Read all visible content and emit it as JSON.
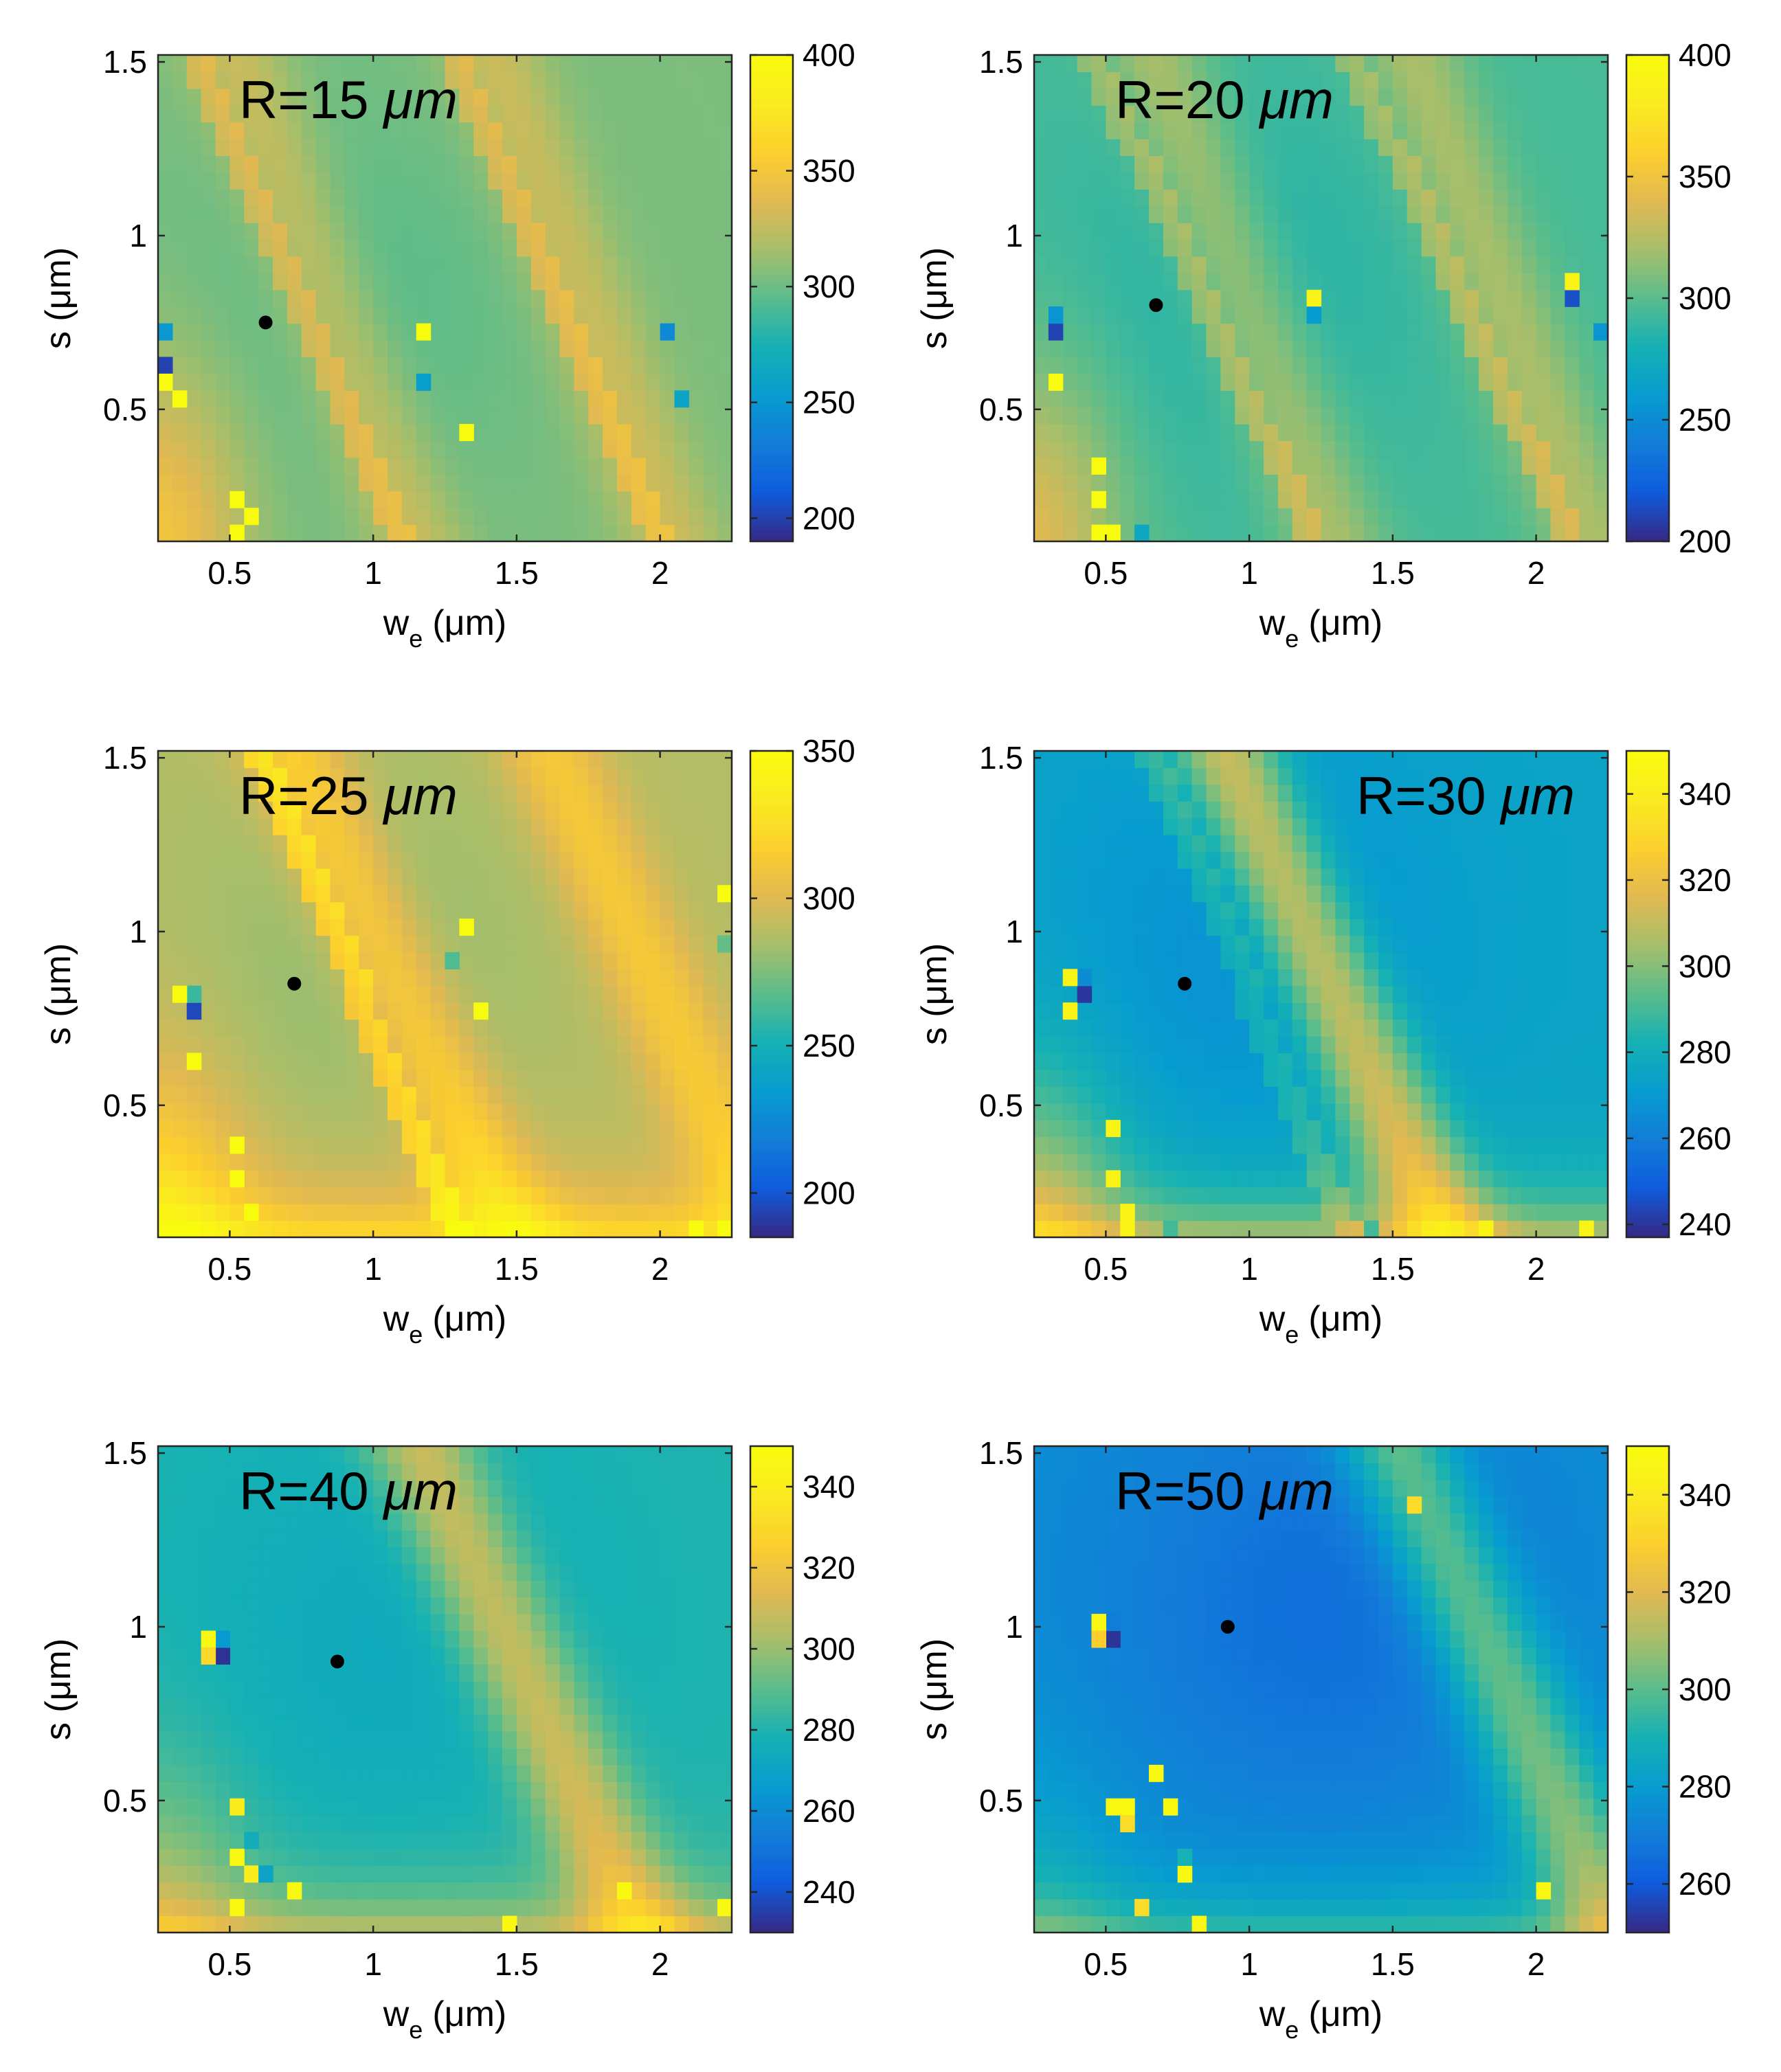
{
  "figure": {
    "description_note": "2x3 grid of heatmaps, values vs electrode width and gap"
  },
  "chart_data": [
    {
      "type": "heatmap",
      "title": "R=15 μm",
      "title_prefix": "R=15",
      "title_unit": "μm",
      "title_position": "top-left",
      "xlabel": "w",
      "xlabel_sub": "e",
      "xlabel_unit": "(μm)",
      "ylabel": "s (μm)",
      "xlim": [
        0.25,
        2.25
      ],
      "ylim": [
        0.12,
        1.52
      ],
      "xticks": [
        0.5,
        1,
        1.5,
        2
      ],
      "xtick_labels": [
        "0.5",
        "1",
        "1.5",
        "2"
      ],
      "yticks": [
        0.5,
        1,
        1.5
      ],
      "ytick_labels": [
        "0.5",
        "1",
        "1.5"
      ],
      "clim": [
        190,
        400
      ],
      "cticks": [
        200,
        250,
        300,
        350,
        400
      ],
      "ctick_labels": [
        "200",
        "250",
        "300",
        "350",
        "400"
      ],
      "marker": {
        "x": 0.625,
        "y": 0.75
      },
      "grid_cells": {
        "nx": 40,
        "ny": 29
      },
      "base_value": 305,
      "bands": [
        {
          "a": 1.2,
          "b": 0.45,
          "c": 1.85,
          "height": 25
        },
        {
          "a": 2.1,
          "b": 0.45,
          "c": 1.85,
          "height": 25
        }
      ],
      "ridges": [
        {
          "a": 1.15,
          "b": 0.52,
          "height": 35
        },
        {
          "a": 2.05,
          "b": 0.52,
          "height": 35
        }
      ],
      "bowl": {
        "x": 0.9,
        "y": 0.8,
        "rx": 0.7,
        "ry": 0.6,
        "depth": 10
      },
      "corner_boost": 45,
      "spots": [
        {
          "x": 0.28,
          "y": 0.65,
          "v": 200
        },
        {
          "x": 0.28,
          "y": 0.7,
          "v": 250
        },
        {
          "x": 0.28,
          "y": 0.6,
          "v": 400
        },
        {
          "x": 0.33,
          "y": 0.55,
          "v": 400
        },
        {
          "x": 0.53,
          "y": 0.25,
          "v": 400
        },
        {
          "x": 0.53,
          "y": 0.15,
          "v": 400
        },
        {
          "x": 0.58,
          "y": 0.2,
          "v": 400
        },
        {
          "x": 1.18,
          "y": 0.7,
          "v": 400
        },
        {
          "x": 1.33,
          "y": 0.45,
          "v": 400
        },
        {
          "x": 1.18,
          "y": 0.6,
          "v": 255
        },
        {
          "x": 2.0,
          "y": 0.7,
          "v": 240
        },
        {
          "x": 2.08,
          "y": 0.55,
          "v": 260
        }
      ]
    },
    {
      "type": "heatmap",
      "title": "R=20 μm",
      "title_prefix": "R=20",
      "title_unit": "μm",
      "title_position": "top-left",
      "xlabel": "w",
      "xlabel_sub": "e",
      "xlabel_unit": "(μm)",
      "ylabel": "s (μm)",
      "xlim": [
        0.25,
        2.25
      ],
      "ylim": [
        0.12,
        1.52
      ],
      "xticks": [
        0.5,
        1,
        1.5,
        2
      ],
      "xtick_labels": [
        "0.5",
        "1",
        "1.5",
        "2"
      ],
      "yticks": [
        0.5,
        1,
        1.5
      ],
      "ytick_labels": [
        "0.5",
        "1",
        "1.5"
      ],
      "clim": [
        200,
        400
      ],
      "cticks": [
        200,
        250,
        300,
        350,
        400
      ],
      "ctick_labels": [
        "200",
        "250",
        "300",
        "350",
        "400"
      ],
      "marker": {
        "x": 0.675,
        "y": 0.8
      },
      "grid_cells": {
        "nx": 40,
        "ny": 29
      },
      "base_value": 295,
      "bands": [
        {
          "a": 1.35,
          "b": 0.45,
          "c": 1.95,
          "height": 28
        },
        {
          "a": 2.25,
          "b": 0.45,
          "c": 1.95,
          "height": 28
        }
      ],
      "ridges": [
        {
          "a": 1.28,
          "b": 0.55,
          "height": 35
        },
        {
          "a": 2.18,
          "b": 0.55,
          "height": 35
        }
      ],
      "bowl": {
        "x": 0.95,
        "y": 0.85,
        "rx": 0.7,
        "ry": 0.6,
        "depth": 10
      },
      "corner_boost": 45,
      "spots": [
        {
          "x": 0.33,
          "y": 0.7,
          "v": 210
        },
        {
          "x": 0.33,
          "y": 0.75,
          "v": 255
        },
        {
          "x": 0.33,
          "y": 0.6,
          "v": 400
        },
        {
          "x": 0.48,
          "y": 0.35,
          "v": 400
        },
        {
          "x": 0.48,
          "y": 0.25,
          "v": 400
        },
        {
          "x": 0.53,
          "y": 0.15,
          "v": 400
        },
        {
          "x": 0.48,
          "y": 0.15,
          "v": 400
        },
        {
          "x": 1.23,
          "y": 0.8,
          "v": 390
        },
        {
          "x": 1.23,
          "y": 0.75,
          "v": 260
        },
        {
          "x": 2.13,
          "y": 0.8,
          "v": 215
        },
        {
          "x": 2.13,
          "y": 0.85,
          "v": 390
        },
        {
          "x": 2.23,
          "y": 0.7,
          "v": 255
        },
        {
          "x": 0.63,
          "y": 0.15,
          "v": 270
        }
      ]
    },
    {
      "type": "heatmap",
      "title": "R=25 μm",
      "title_prefix": "R=25",
      "title_unit": "μm",
      "title_position": "top-left",
      "xlabel": "w",
      "xlabel_sub": "e",
      "xlabel_unit": "(μm)",
      "ylabel": "s (μm)",
      "xlim": [
        0.25,
        2.25
      ],
      "ylim": [
        0.12,
        1.52
      ],
      "xticks": [
        0.5,
        1,
        1.5,
        2
      ],
      "xtick_labels": [
        "0.5",
        "1",
        "1.5",
        "2"
      ],
      "yticks": [
        0.5,
        1,
        1.5
      ],
      "ytick_labels": [
        "0.5",
        "1",
        "1.5"
      ],
      "clim": [
        185,
        350
      ],
      "cticks": [
        200,
        250,
        300,
        350
      ],
      "ctick_labels": [
        "200",
        "250",
        "300",
        "350"
      ],
      "marker": {
        "x": 0.725,
        "y": 0.85
      },
      "grid_cells": {
        "nx": 40,
        "ny": 29
      },
      "base_value": 288,
      "bands": [
        {
          "a": 1.55,
          "b": 0.55,
          "c": 2.0,
          "height": 30
        },
        {
          "a": 2.45,
          "b": 0.55,
          "c": 2.0,
          "height": 25
        }
      ],
      "ridges": [
        {
          "a": 1.35,
          "b": 0.5,
          "height": 45
        }
      ],
      "bowl": {
        "x": 0.95,
        "y": 0.9,
        "rx": 0.6,
        "ry": 0.55,
        "depth": 8
      },
      "bottom_boost": 40,
      "corner_boost": 35,
      "spots": [
        {
          "x": 0.38,
          "y": 0.75,
          "v": 195
        },
        {
          "x": 0.38,
          "y": 0.8,
          "v": 260
        },
        {
          "x": 0.33,
          "y": 0.8,
          "v": 350
        },
        {
          "x": 0.38,
          "y": 0.65,
          "v": 350
        },
        {
          "x": 0.53,
          "y": 0.4,
          "v": 350
        },
        {
          "x": 0.53,
          "y": 0.3,
          "v": 350
        },
        {
          "x": 0.58,
          "y": 0.2,
          "v": 350
        },
        {
          "x": 1.33,
          "y": 1.0,
          "v": 350
        },
        {
          "x": 1.38,
          "y": 0.75,
          "v": 350
        },
        {
          "x": 2.23,
          "y": 1.1,
          "v": 350
        },
        {
          "x": 1.28,
          "y": 0.9,
          "v": 265
        },
        {
          "x": 2.23,
          "y": 0.95,
          "v": 270
        },
        {
          "x": 2.13,
          "y": 0.15,
          "v": 350
        },
        {
          "x": 2.23,
          "y": 0.15,
          "v": 350
        }
      ]
    },
    {
      "type": "heatmap",
      "title": "R=30 μm",
      "title_prefix": "R=30",
      "title_unit": "μm",
      "title_position": "top-right",
      "xlabel": "w",
      "xlabel_sub": "e",
      "xlabel_unit": "(μm)",
      "ylabel": "s (μm)",
      "xlim": [
        0.25,
        2.25
      ],
      "ylim": [
        0.12,
        1.52
      ],
      "xticks": [
        0.5,
        1,
        1.5,
        2
      ],
      "xtick_labels": [
        "0.5",
        "1",
        "1.5",
        "2"
      ],
      "yticks": [
        0.5,
        1,
        1.5
      ],
      "ytick_labels": [
        "0.5",
        "1",
        "1.5"
      ],
      "clim": [
        237,
        350
      ],
      "cticks": [
        240,
        260,
        280,
        300,
        320,
        340
      ],
      "ctick_labels": [
        "240",
        "260",
        "280",
        "300",
        "320",
        "340"
      ],
      "marker": {
        "x": 0.775,
        "y": 0.85
      },
      "grid_cells": {
        "nx": 40,
        "ny": 29
      },
      "base_value": 275,
      "bands": [
        {
          "a": 1.75,
          "b": 0.55,
          "c": 2.1,
          "height": 40
        }
      ],
      "ridges": [
        {
          "a": 1.4,
          "b": 0.5,
          "height": 20
        }
      ],
      "bowl": {
        "x": 1.0,
        "y": 0.95,
        "rx": 0.7,
        "ry": 0.65,
        "depth": 8
      },
      "bottom_boost": 35,
      "corner_boost": 30,
      "spots": [
        {
          "x": 0.43,
          "y": 0.8,
          "v": 240
        },
        {
          "x": 0.43,
          "y": 0.85,
          "v": 265
        },
        {
          "x": 0.38,
          "y": 0.85,
          "v": 345
        },
        {
          "x": 0.38,
          "y": 0.75,
          "v": 345
        },
        {
          "x": 0.53,
          "y": 0.45,
          "v": 345
        },
        {
          "x": 0.53,
          "y": 0.3,
          "v": 345
        },
        {
          "x": 0.58,
          "y": 0.2,
          "v": 345
        },
        {
          "x": 0.58,
          "y": 0.15,
          "v": 345
        },
        {
          "x": 1.83,
          "y": 0.15,
          "v": 345
        },
        {
          "x": 2.18,
          "y": 0.15,
          "v": 345
        },
        {
          "x": 0.73,
          "y": 0.15,
          "v": 290
        },
        {
          "x": 1.43,
          "y": 0.15,
          "v": 290
        }
      ]
    },
    {
      "type": "heatmap",
      "title": "R=40 μm",
      "title_prefix": "R=40",
      "title_unit": "μm",
      "title_position": "top-left",
      "xlabel": "w",
      "xlabel_sub": "e",
      "xlabel_unit": "(μm)",
      "ylabel": "s (μm)",
      "xlim": [
        0.25,
        2.25
      ],
      "ylim": [
        0.12,
        1.52
      ],
      "xticks": [
        0.5,
        1,
        1.5,
        2
      ],
      "xtick_labels": [
        "0.5",
        "1",
        "1.5",
        "2"
      ],
      "yticks": [
        0.5,
        1,
        1.5
      ],
      "ytick_labels": [
        "0.5",
        "1",
        "1.5"
      ],
      "clim": [
        230,
        350
      ],
      "cticks": [
        240,
        260,
        280,
        300,
        320,
        340
      ],
      "ctick_labels": [
        "240",
        "260",
        "280",
        "300",
        "320",
        "340"
      ],
      "marker": {
        "x": 0.875,
        "y": 0.9
      },
      "grid_cells": {
        "nx": 40,
        "ny": 29
      },
      "base_value": 280,
      "bands": [
        {
          "a": 2.0,
          "b": 0.55,
          "c": 2.2,
          "height": 32
        }
      ],
      "ridges": [],
      "bowl": {
        "x": 1.05,
        "y": 0.95,
        "rx": 0.75,
        "ry": 0.7,
        "depth": 6
      },
      "bottom_boost": 30,
      "corner_boost": 20,
      "spots": [
        {
          "x": 0.48,
          "y": 0.9,
          "v": 232
        },
        {
          "x": 0.48,
          "y": 0.95,
          "v": 265
        },
        {
          "x": 0.43,
          "y": 0.95,
          "v": 348
        },
        {
          "x": 0.43,
          "y": 0.9,
          "v": 330
        },
        {
          "x": 0.53,
          "y": 0.5,
          "v": 340
        },
        {
          "x": 0.53,
          "y": 0.35,
          "v": 348
        },
        {
          "x": 0.53,
          "y": 0.2,
          "v": 348
        },
        {
          "x": 0.58,
          "y": 0.3,
          "v": 340
        },
        {
          "x": 0.73,
          "y": 0.25,
          "v": 348
        },
        {
          "x": 1.48,
          "y": 0.15,
          "v": 348
        },
        {
          "x": 1.88,
          "y": 0.25,
          "v": 348
        },
        {
          "x": 2.23,
          "y": 0.2,
          "v": 348
        },
        {
          "x": 0.63,
          "y": 0.3,
          "v": 270
        },
        {
          "x": 0.58,
          "y": 0.4,
          "v": 275
        }
      ]
    },
    {
      "type": "heatmap",
      "title": "R=50 μm",
      "title_prefix": "R=50",
      "title_unit": "μm",
      "title_position": "top-left",
      "xlabel": "w",
      "xlabel_sub": "e",
      "xlabel_unit": "(μm)",
      "ylabel": "s (μm)",
      "xlim": [
        0.25,
        2.25
      ],
      "ylim": [
        0.12,
        1.52
      ],
      "xticks": [
        0.5,
        1,
        1.5,
        2
      ],
      "xtick_labels": [
        "0.5",
        "1",
        "1.5",
        "2"
      ],
      "yticks": [
        0.5,
        1,
        1.5
      ],
      "ytick_labels": [
        "0.5",
        "1",
        "1.5"
      ],
      "clim": [
        250,
        350
      ],
      "cticks": [
        260,
        280,
        300,
        320,
        340
      ],
      "ctick_labels": [
        "260",
        "280",
        "300",
        "320",
        "340"
      ],
      "marker": {
        "x": 0.925,
        "y": 1.0
      },
      "grid_cells": {
        "nx": 40,
        "ny": 29
      },
      "base_value": 276,
      "bands": [
        {
          "a": 2.35,
          "b": 0.55,
          "c": 2.4,
          "height": 30
        }
      ],
      "ridges": [],
      "bowl": {
        "x": 1.25,
        "y": 1.05,
        "rx": 0.8,
        "ry": 0.7,
        "depth": 10
      },
      "bottom_boost": 22,
      "corner_boost": 10,
      "spots": [
        {
          "x": 0.53,
          "y": 0.98,
          "v": 252
        },
        {
          "x": 0.53,
          "y": 1.03,
          "v": 270
        },
        {
          "x": 0.48,
          "y": 1.03,
          "v": 348
        },
        {
          "x": 0.48,
          "y": 0.98,
          "v": 330
        },
        {
          "x": 0.58,
          "y": 0.5,
          "v": 348
        },
        {
          "x": 0.53,
          "y": 0.5,
          "v": 348
        },
        {
          "x": 0.68,
          "y": 0.6,
          "v": 348
        },
        {
          "x": 0.73,
          "y": 0.5,
          "v": 348
        },
        {
          "x": 0.58,
          "y": 0.45,
          "v": 335
        },
        {
          "x": 0.78,
          "y": 0.3,
          "v": 348
        },
        {
          "x": 0.83,
          "y": 0.15,
          "v": 348
        },
        {
          "x": 1.58,
          "y": 1.35,
          "v": 335
        },
        {
          "x": 2.03,
          "y": 0.25,
          "v": 348
        },
        {
          "x": 0.63,
          "y": 0.2,
          "v": 335
        },
        {
          "x": 0.78,
          "y": 0.35,
          "v": 290
        }
      ]
    }
  ]
}
